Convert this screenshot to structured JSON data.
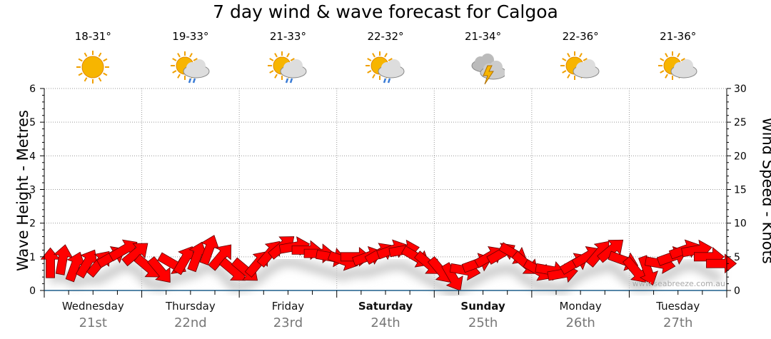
{
  "title": "7 day wind & wave forecast for Calgoa",
  "watermark": "www.seabreeze.com.au",
  "colors": {
    "arrow": "#ff0000",
    "axis": "#1f5f8b",
    "grid": "#999999",
    "date": "#777777"
  },
  "days": [
    {
      "day": "Wednesday",
      "date": "21st",
      "temp": "18-31°",
      "icon": "sunny",
      "bold": false
    },
    {
      "day": "Thursday",
      "date": "22nd",
      "temp": "19-33°",
      "icon": "sun-cloud-rain",
      "bold": false
    },
    {
      "day": "Friday",
      "date": "23rd",
      "temp": "21-33°",
      "icon": "sun-cloud-rain",
      "bold": false
    },
    {
      "day": "Saturday",
      "date": "24th",
      "temp": "22-32°",
      "icon": "sun-cloud-rain",
      "bold": true
    },
    {
      "day": "Sunday",
      "date": "25th",
      "temp": "21-34°",
      "icon": "thunderstorm",
      "bold": true
    },
    {
      "day": "Monday",
      "date": "26th",
      "temp": "22-36°",
      "icon": "sun-cloud",
      "bold": false
    },
    {
      "day": "Tuesday",
      "date": "27th",
      "temp": "21-36°",
      "icon": "sun-cloud",
      "bold": false
    }
  ],
  "chart_data": {
    "type": "scatter",
    "title": "7 day wind & wave forecast for Calgoa",
    "ylabel_left": "Wave Height - Metres",
    "ylabel_right": "Wind Speed - Knots",
    "ylim_left": [
      0,
      6
    ],
    "ylim_right": [
      0,
      30
    ],
    "left_ticks": [
      "0",
      "1",
      "2",
      "3",
      "4",
      "5",
      "6"
    ],
    "right_ticks": [
      "0",
      "5",
      "10",
      "15",
      "20",
      "25",
      "30"
    ],
    "grid": true,
    "interval_hours": 3,
    "wind_knots": [
      4,
      4.5,
      3.5,
      4,
      4,
      5,
      6,
      5.5,
      3.5,
      3,
      4,
      4.5,
      5,
      6,
      5,
      3,
      3,
      4,
      5.5,
      6.5,
      6.5,
      6,
      5.5,
      5,
      4.5,
      5,
      5,
      5.5,
      6,
      6,
      5,
      4,
      3,
      2,
      3,
      4,
      5,
      5.5,
      5.5,
      4,
      3,
      3,
      2.5,
      4,
      5,
      5.5,
      6,
      4.5,
      3,
      3,
      4,
      5,
      6,
      6,
      5,
      4
    ],
    "wind_direction_deg": [
      0,
      10,
      20,
      30,
      40,
      60,
      60,
      50,
      130,
      140,
      120,
      30,
      20,
      20,
      40,
      130,
      130,
      40,
      40,
      50,
      80,
      90,
      90,
      100,
      110,
      90,
      70,
      60,
      70,
      80,
      120,
      130,
      140,
      150,
      100,
      70,
      60,
      60,
      120,
      130,
      120,
      100,
      80,
      60,
      60,
      40,
      50,
      110,
      140,
      160,
      100,
      70,
      70,
      80,
      90,
      90
    ]
  }
}
